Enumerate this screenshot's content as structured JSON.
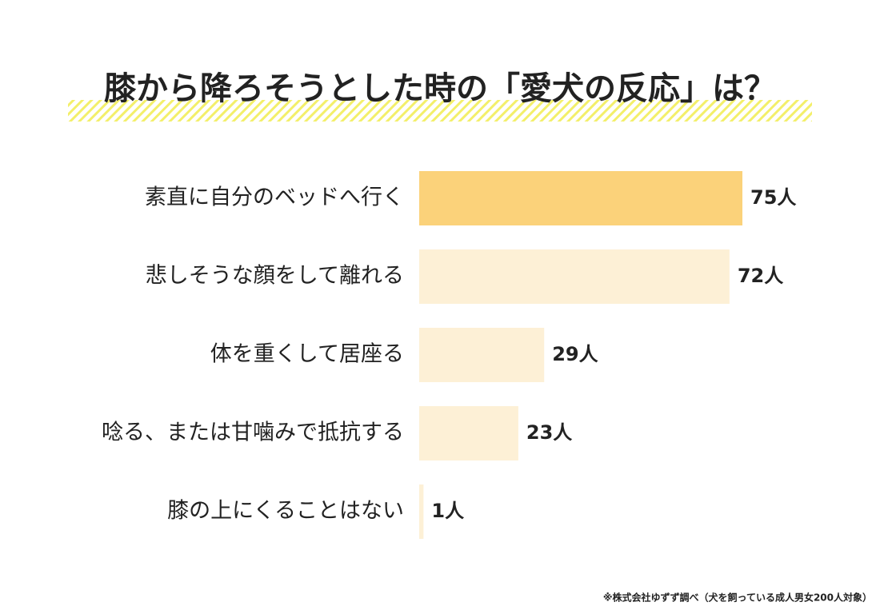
{
  "chart_data": {
    "type": "bar",
    "orientation": "horizontal",
    "title": "膝から降ろそうとした時の「愛犬の反応」は？",
    "categories": [
      "素直に自分のベッドへ行く",
      "悲しそうな顔をして離れる",
      "体を重くして居座る",
      "唸る、または甘噛みで抵抗する",
      "膝の上にくることはない"
    ],
    "values": [
      75,
      72,
      29,
      23,
      1
    ],
    "value_labels": [
      "75人",
      "72人",
      "29人",
      "23人",
      "1人"
    ],
    "colors": [
      "#fbd27a",
      "#fdf0d6",
      "#fdf0d6",
      "#fdf0d6",
      "#fdf0d6"
    ],
    "source": "※株式会社ゆずず調べ（犬を飼っている成人男女200人対象）"
  }
}
